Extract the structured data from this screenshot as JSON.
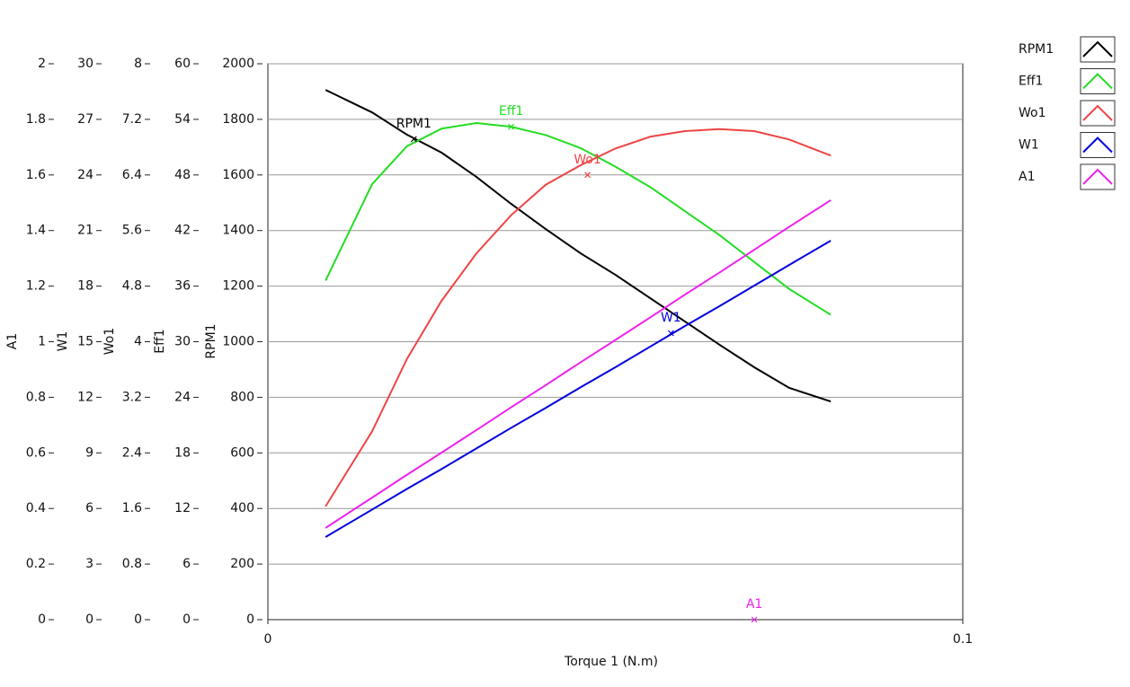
{
  "chart_data": {
    "type": "line",
    "xlabel": "Torque 1 (N.m)",
    "xlim": [
      0,
      0.1
    ],
    "xticks": [
      0,
      0.1
    ],
    "x": [
      0.0083,
      0.015,
      0.02,
      0.025,
      0.03,
      0.035,
      0.04,
      0.045,
      0.05,
      0.055,
      0.06,
      0.065,
      0.07,
      0.075,
      0.081
    ],
    "y_axes": [
      {
        "label": "A1",
        "ylim": [
          0,
          2
        ],
        "yticks": [
          0,
          0.2,
          0.4,
          0.6,
          0.8,
          1,
          1.2,
          1.4,
          1.6,
          1.8,
          2
        ]
      },
      {
        "label": "W1",
        "ylim": [
          0,
          30
        ],
        "yticks": [
          0,
          3,
          6,
          9,
          12,
          15,
          18,
          21,
          24,
          27,
          30
        ]
      },
      {
        "label": "Wo1",
        "ylim": [
          0,
          8
        ],
        "yticks": [
          0,
          0.8,
          1.6,
          2.4,
          3.2,
          4,
          4.8,
          5.6,
          6.4,
          7.2,
          8
        ]
      },
      {
        "label": "Eff1",
        "ylim": [
          0,
          60
        ],
        "yticks": [
          0,
          6,
          12,
          18,
          24,
          30,
          36,
          42,
          48,
          54,
          60
        ]
      },
      {
        "label": "RPM1",
        "ylim": [
          0,
          2000
        ],
        "yticks": [
          0,
          200,
          400,
          600,
          800,
          1000,
          1200,
          1400,
          1600,
          1800,
          2000
        ]
      }
    ],
    "grid": true,
    "legend": "top-right",
    "series": [
      {
        "name": "RPM1",
        "color": "#000000",
        "axis": 4,
        "values": [
          1906,
          1825,
          1745,
          1680,
          1593,
          1496,
          1405,
          1318,
          1241,
          1157,
          1073,
          989,
          908,
          834,
          785
        ]
      },
      {
        "name": "Eff1",
        "color": "#22dd22",
        "axis": 3,
        "values": [
          36.6,
          47.0,
          51.1,
          53.0,
          53.6,
          53.2,
          52.3,
          50.9,
          48.9,
          46.7,
          44.1,
          41.5,
          38.6,
          35.7,
          32.9
        ]
      },
      {
        "name": "Wo1",
        "color": "#ee4444",
        "axis": 2,
        "values": [
          1.63,
          2.71,
          3.75,
          4.59,
          5.27,
          5.82,
          6.26,
          6.54,
          6.78,
          6.95,
          7.03,
          7.06,
          7.03,
          6.91,
          6.68
        ]
      },
      {
        "name": "W1",
        "color": "#0000dd",
        "axis": 1,
        "values": [
          4.46,
          5.94,
          7.05,
          8.13,
          9.24,
          10.35,
          11.43,
          12.54,
          13.62,
          14.73,
          15.84,
          16.92,
          18.03,
          19.14,
          20.45
        ]
      },
      {
        "name": "A1",
        "color": "#ee22ee",
        "axis": 0,
        "values": [
          0.33,
          0.439,
          0.521,
          0.601,
          0.682,
          0.764,
          0.844,
          0.926,
          1.006,
          1.087,
          1.169,
          1.249,
          1.331,
          1.413,
          1.509
        ]
      }
    ],
    "cursors": [
      {
        "label": "RPM1",
        "x": 0.021,
        "y": 1729
      },
      {
        "label": "Eff1",
        "x": 0.035,
        "y": 53.2
      },
      {
        "label": "Wo1",
        "x": 0.046,
        "y": 6.4
      },
      {
        "label": "W1",
        "x": 0.058,
        "y": 15.46
      },
      {
        "label": "A1",
        "x": 0.07,
        "y": 0
      }
    ]
  }
}
